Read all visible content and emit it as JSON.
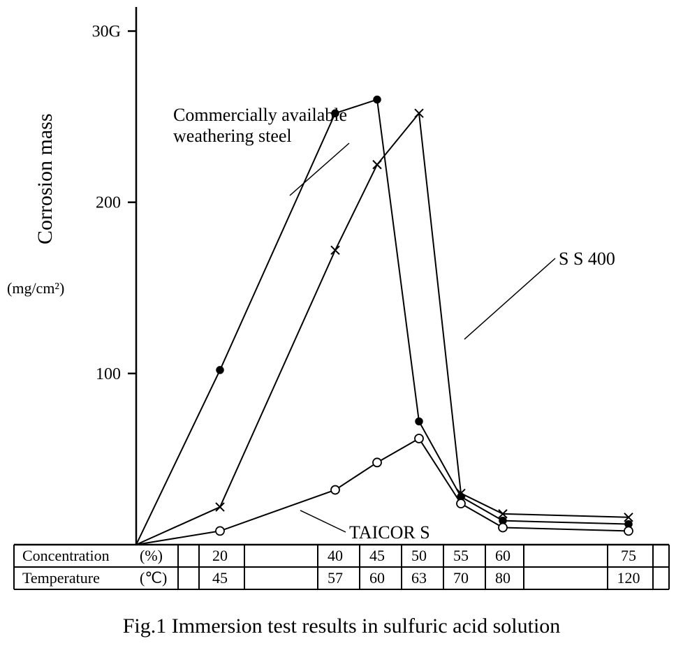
{
  "figure": {
    "caption": "Fig.1 Immersion test results in sulfuric acid solution",
    "ylabel": "Corrosion mass",
    "yunit": "(mg/cm²)",
    "background_color": "#ffffff",
    "axis_color": "#000000",
    "text_color": "#000000",
    "line_width_axis": 2.5,
    "line_width_series": 2,
    "font_family": "Times New Roman, serif",
    "caption_fontsize": 30,
    "ylabel_fontsize": 30,
    "yunit_fontsize": 22,
    "tick_fontsize": 24,
    "series_label_fontsize": 26,
    "table_fontsize": 22
  },
  "plot": {
    "type": "line",
    "x_categories": [
      20,
      40,
      45,
      50,
      55,
      60,
      75
    ],
    "ylim": [
      0,
      310
    ],
    "yticks": [
      100,
      200,
      300
    ],
    "ytick_labels": [
      "100",
      "200",
      "30G"
    ],
    "series": [
      {
        "name": "Commercially available weathering steel",
        "label_line1": "Commercially available",
        "label_line2": "weathering steel",
        "marker": "dot",
        "marker_fill": "#000000",
        "color": "#000000",
        "y": [
          102,
          252,
          260,
          72,
          28,
          14,
          12
        ]
      },
      {
        "name": "S S 400",
        "label_line1": "S S 400",
        "marker": "x",
        "marker_fill": "none",
        "color": "#000000",
        "y": [
          22,
          172,
          222,
          252,
          30,
          18,
          16
        ]
      },
      {
        "name": "TAICOR S",
        "label_line1": "TAICOR S",
        "marker": "circle",
        "marker_fill": "#ffffff",
        "color": "#000000",
        "y": [
          8,
          32,
          48,
          62,
          24,
          10,
          8
        ]
      }
    ]
  },
  "xtable": {
    "rows": [
      {
        "label": "Concentration",
        "unit": "(%)",
        "values": [
          "20",
          "40",
          "45",
          "50",
          "55",
          "60",
          "75"
        ]
      },
      {
        "label": "Temperature",
        "unit": "(℃)",
        "values": [
          "45",
          "57",
          "60",
          "63",
          "70",
          "80",
          "120"
        ]
      }
    ],
    "border_color": "#000000",
    "border_width": 2
  }
}
